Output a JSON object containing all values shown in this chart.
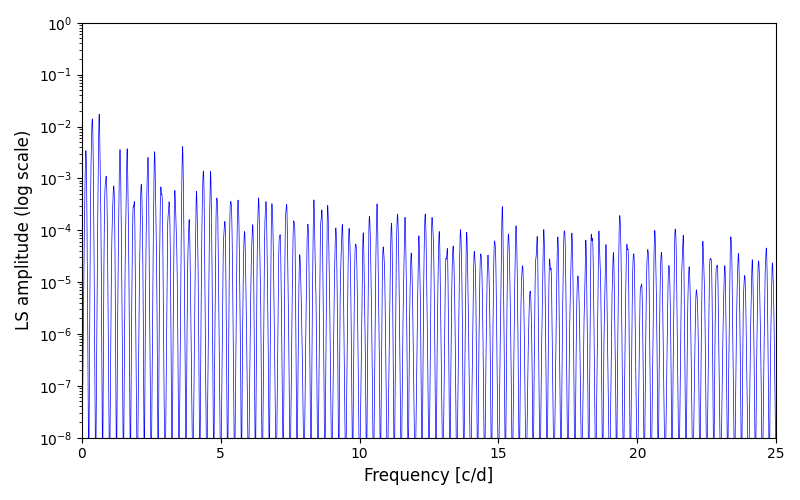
{
  "xlabel": "Frequency [c/d]",
  "ylabel": "LS amplitude (log scale)",
  "line_color": "#0000ff",
  "xlim": [
    0,
    25
  ],
  "ylim": [
    1e-08,
    1.0
  ],
  "figsize": [
    8.0,
    5.0
  ],
  "dpi": 100,
  "xticks": [
    0,
    5,
    10,
    15,
    20,
    25
  ],
  "background_color": "#ffffff",
  "seed": 42
}
